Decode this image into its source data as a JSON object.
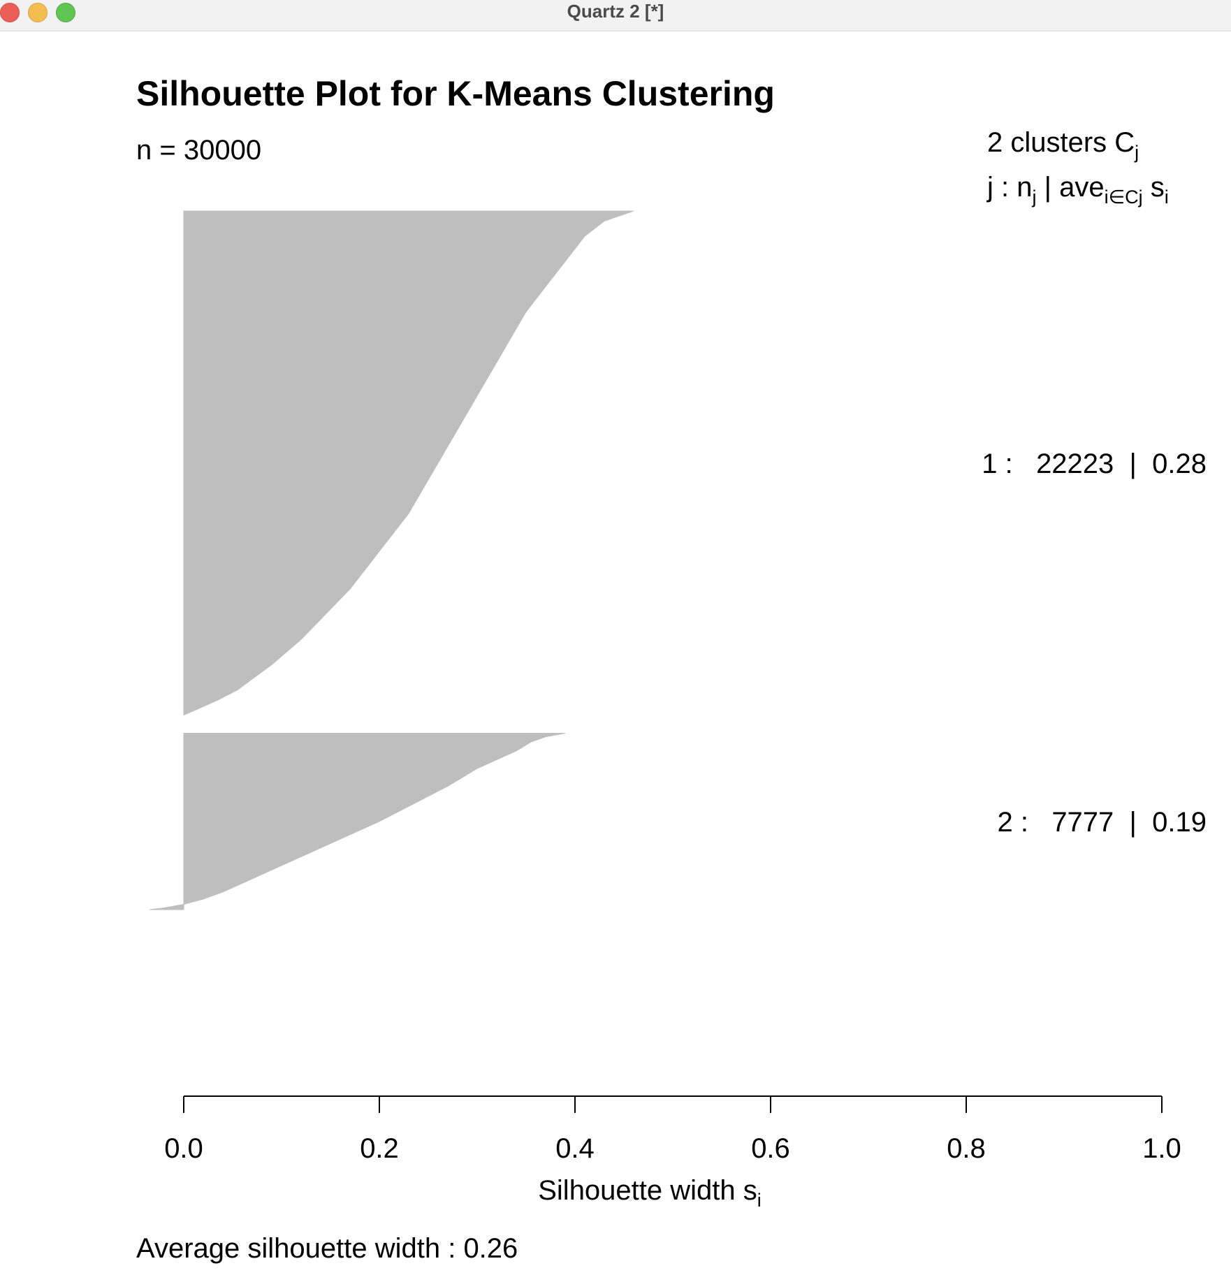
{
  "window": {
    "title": "Quartz 2 [*]"
  },
  "colors": {
    "bar_fill": "#bebebe",
    "axis": "#000000",
    "background": "#ffffff"
  },
  "chart_data": {
    "type": "bar",
    "orientation": "horizontal",
    "title": "Silhouette Plot for K-Means Clustering",
    "subtitle": "n = 30000",
    "legend_header_line1_main": "2  clusters  C",
    "legend_header_line1_sub": "j",
    "legend_header_line2": {
      "j_prefix": "j :  n",
      "j_sub": "j",
      "mid": " | ave",
      "ave_sub": "i∈Cj",
      "s": "  s",
      "s_sub": "i"
    },
    "xlabel_main": "Silhouette width s",
    "xlabel_sub": "i",
    "xlim": [
      0,
      1
    ],
    "x_ticks": [
      0.0,
      0.2,
      0.4,
      0.6,
      0.8,
      1.0
    ],
    "x_tick_labels": [
      "0.0",
      "0.2",
      "0.4",
      "0.6",
      "0.8",
      "1.0"
    ],
    "grid": false,
    "average_silhouette_label": "Average silhouette width :  0.26",
    "average_silhouette_width": 0.26,
    "total_n": 30000,
    "clusters": [
      {
        "id": 1,
        "size": 22223,
        "avg_width": 0.28,
        "label": "1 :   22223  |  0.28",
        "profile_fraction": [
          0,
          0.02,
          0.05,
          0.1,
          0.15,
          0.2,
          0.25,
          0.3,
          0.35,
          0.4,
          0.45,
          0.5,
          0.55,
          0.6,
          0.65,
          0.7,
          0.75,
          0.8,
          0.85,
          0.9,
          0.95,
          0.97,
          0.99,
          1.0
        ],
        "profile_width": [
          0.46,
          0.43,
          0.41,
          0.39,
          0.37,
          0.35,
          0.335,
          0.32,
          0.305,
          0.29,
          0.275,
          0.26,
          0.245,
          0.23,
          0.21,
          0.19,
          0.17,
          0.145,
          0.12,
          0.09,
          0.055,
          0.035,
          0.012,
          0.0
        ]
      },
      {
        "id": 2,
        "size": 7777,
        "avg_width": 0.19,
        "label": "2 :   7777  |  0.19",
        "profile_fraction": [
          0,
          0.02,
          0.05,
          0.1,
          0.15,
          0.2,
          0.3,
          0.4,
          0.5,
          0.6,
          0.7,
          0.8,
          0.9,
          0.94,
          0.97,
          0.99,
          1.0
        ],
        "profile_width": [
          0.39,
          0.37,
          0.355,
          0.34,
          0.32,
          0.3,
          0.27,
          0.235,
          0.2,
          0.16,
          0.12,
          0.08,
          0.04,
          0.02,
          0.0,
          -0.02,
          -0.035
        ]
      }
    ]
  }
}
